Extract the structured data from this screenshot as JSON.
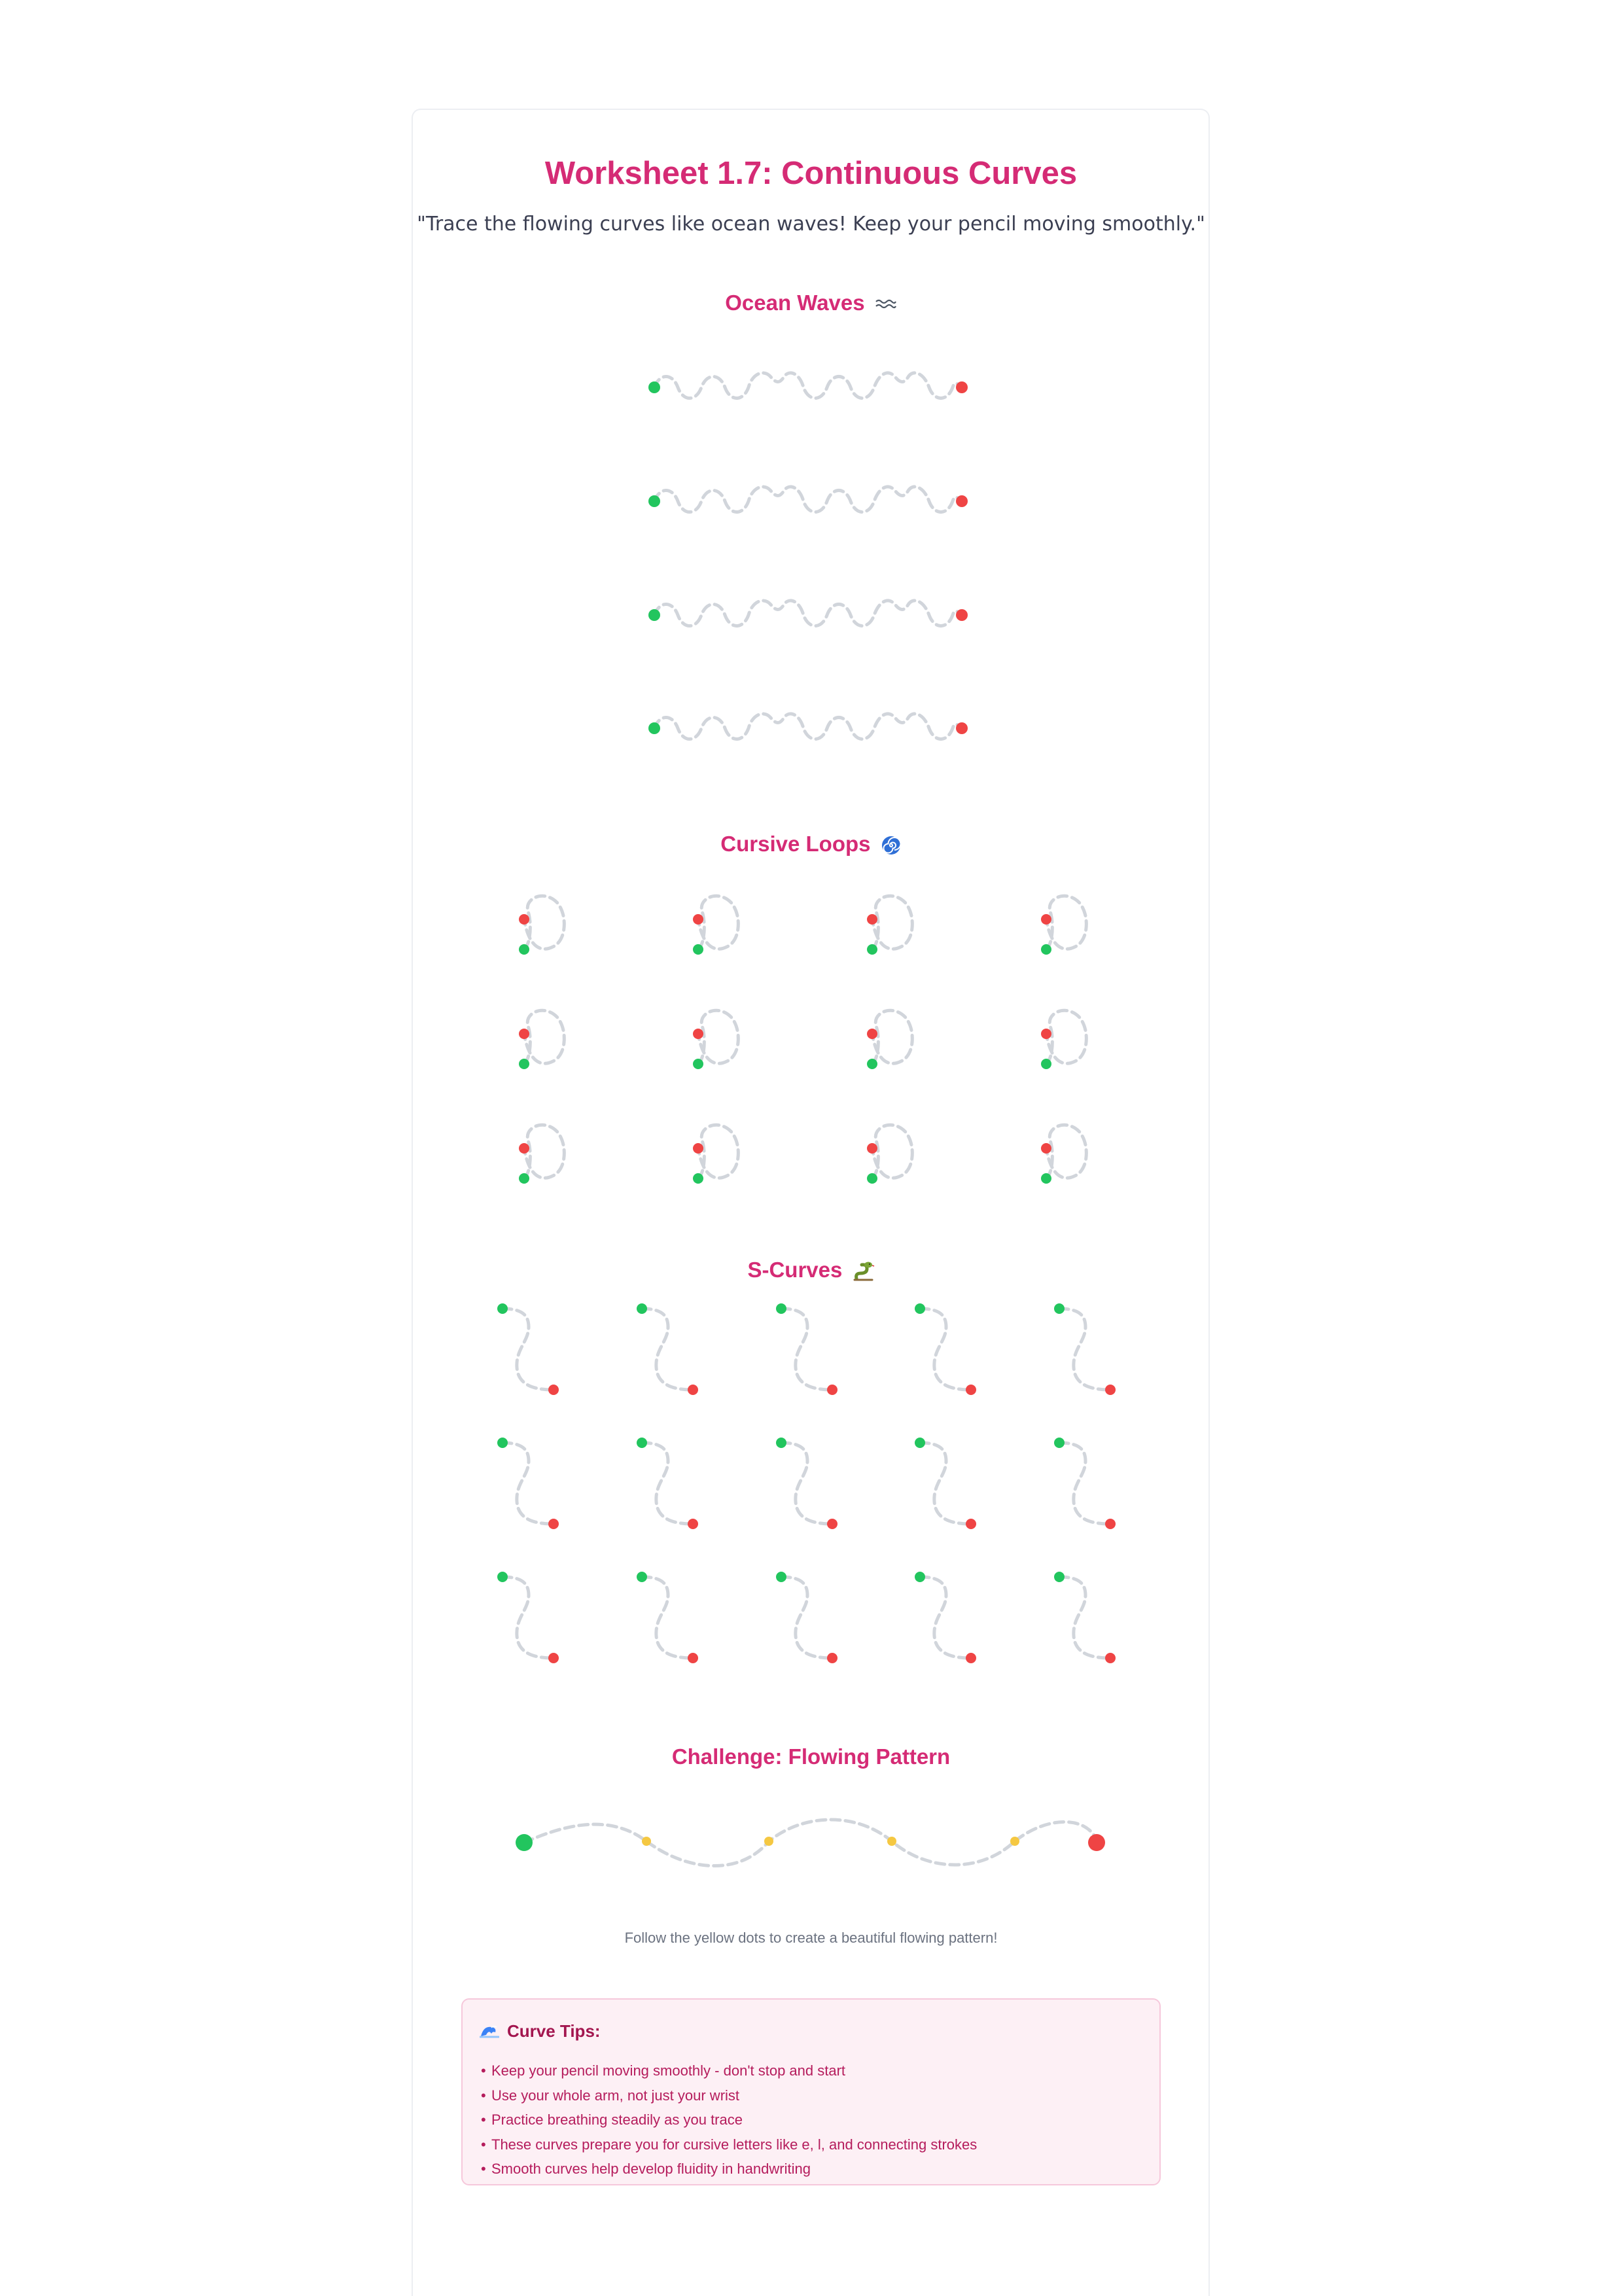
{
  "worksheet": {
    "title": "Worksheet 1.7: Continuous Curves",
    "subtitle": "\"Trace the flowing curves like ocean waves! Keep your pencil moving smoothly.\""
  },
  "sections": {
    "ocean": {
      "title": "Ocean Waves",
      "icon": "wave-icon"
    },
    "loops": {
      "title": "Cursive Loops",
      "icon": "spiral-icon"
    },
    "scurves": {
      "title": "S-Curves",
      "icon": "snake-icon"
    },
    "challenge": {
      "title": "Challenge: Flowing Pattern",
      "hint": "Follow the yellow dots to create a beautiful flowing pattern!"
    }
  },
  "colors": {
    "accent": "#d52b75",
    "start_dot": "#22c55e",
    "end_dot": "#ef4444",
    "guide_dot": "#f5c842",
    "trace_line": "#d1d5db",
    "tips_bg": "#fdf0f5",
    "tips_border": "#f6c8db"
  },
  "tips": {
    "title": "Curve Tips:",
    "icon": "wave-icon",
    "items": [
      "Keep your pencil moving smoothly - don't stop and start",
      "Use your whole arm, not just your wrist",
      "Practice breathing steadily as you trace",
      "These curves prepare you for cursive letters like e, l, and connecting strokes",
      "Smooth curves help develop fluidity in handwriting"
    ]
  }
}
